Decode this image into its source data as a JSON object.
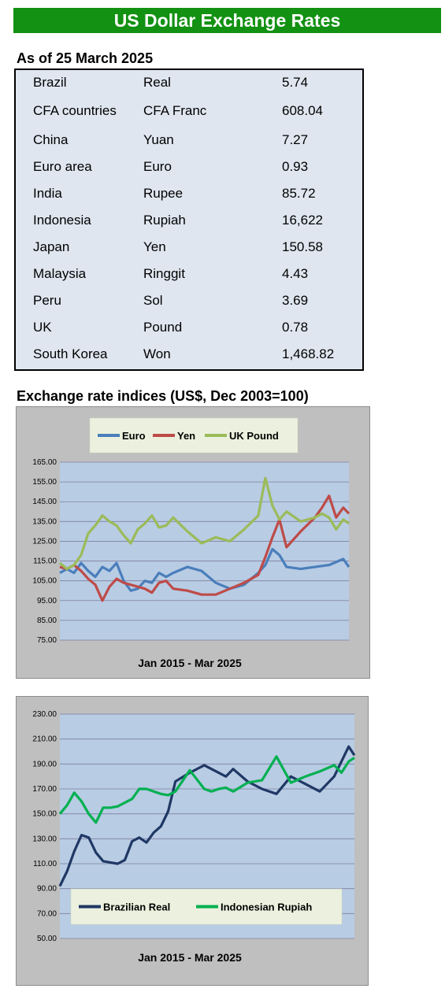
{
  "header": {
    "title": "US Dollar Exchange Rates"
  },
  "rates_section": {
    "subtitle": "As of 25 March 2025",
    "rows": [
      {
        "country": "Brazil",
        "currency": "Real",
        "rate": "5.74"
      },
      {
        "country": "CFA countries",
        "currency": "CFA Franc",
        "rate": "608.04"
      },
      {
        "country": "China",
        "currency": "Yuan",
        "rate": "7.27"
      },
      {
        "country": "Euro area",
        "currency": "Euro",
        "rate": "0.93"
      },
      {
        "country": "India",
        "currency": "Rupee",
        "rate": "85.72"
      },
      {
        "country": "Indonesia",
        "currency": "Rupiah",
        "rate": "16,622"
      },
      {
        "country": "Japan",
        "currency": "Yen",
        "rate": "150.58"
      },
      {
        "country": "Malaysia",
        "currency": "Ringgit",
        "rate": "4.43"
      },
      {
        "country": "Peru",
        "currency": "Sol",
        "rate": "3.69"
      },
      {
        "country": "UK",
        "currency": "Pound",
        "rate": "0.78"
      },
      {
        "country": "South Korea",
        "currency": "Won",
        "rate": "1,468.82"
      }
    ]
  },
  "indices_section": {
    "subtitle": "Exchange rate indices (US$, Dec 2003=100)"
  },
  "chart_data": [
    {
      "type": "line",
      "title": "",
      "xlabel": "Jan 2015 - Mar 2025",
      "ylabel": "",
      "ylim": [
        75,
        165
      ],
      "yticks": [
        "75.00",
        "85.00",
        "95.00",
        "105.00",
        "115.00",
        "125.00",
        "135.00",
        "145.00",
        "155.00",
        "165.00"
      ],
      "grid": true,
      "legend_position": "top",
      "background": "#b8cce4",
      "series": [
        {
          "name": "Euro",
          "color": "#4a7ebb",
          "x": [
            2015,
            2015.25,
            2015.5,
            2015.75,
            2016,
            2016.25,
            2016.5,
            2016.75,
            2017,
            2017.25,
            2017.5,
            2017.75,
            2018,
            2018.25,
            2018.5,
            2018.75,
            2019,
            2019.5,
            2020,
            2020.5,
            2021,
            2021.5,
            2022,
            2022.25,
            2022.5,
            2022.75,
            2023,
            2023.5,
            2024,
            2024.5,
            2025,
            2025.2
          ],
          "values": [
            109,
            111,
            109,
            114,
            110,
            107,
            112,
            110,
            114,
            105,
            100,
            101,
            105,
            104,
            109,
            107,
            109,
            112,
            110,
            104,
            101,
            103,
            109,
            113,
            121,
            118,
            112,
            111,
            112,
            113,
            116,
            112
          ]
        },
        {
          "name": "Yen",
          "color": "#be4b48",
          "x": [
            2015,
            2015.25,
            2015.5,
            2015.75,
            2016,
            2016.25,
            2016.5,
            2016.75,
            2017,
            2017.25,
            2017.5,
            2017.75,
            2018,
            2018.25,
            2018.5,
            2018.75,
            2019,
            2019.5,
            2020,
            2020.5,
            2021,
            2021.5,
            2022,
            2022.25,
            2022.5,
            2022.75,
            2023,
            2023.5,
            2024,
            2024.25,
            2024.5,
            2024.75,
            2025,
            2025.2
          ],
          "values": [
            112,
            111,
            113,
            110,
            106,
            103,
            95,
            102,
            106,
            104,
            103,
            102,
            101,
            99,
            104,
            105,
            101,
            100,
            98,
            98,
            101,
            104,
            108,
            117,
            127,
            136,
            122,
            130,
            137,
            142,
            148,
            137,
            142,
            139
          ]
        },
        {
          "name": "UK Pound",
          "color": "#9bbb59",
          "x": [
            2015,
            2015.25,
            2015.5,
            2015.75,
            2016,
            2016.25,
            2016.5,
            2016.75,
            2017,
            2017.25,
            2017.5,
            2017.75,
            2018,
            2018.25,
            2018.5,
            2018.75,
            2019,
            2019.5,
            2020,
            2020.5,
            2021,
            2021.5,
            2022,
            2022.25,
            2022.5,
            2022.75,
            2023,
            2023.5,
            2024,
            2024.25,
            2024.5,
            2024.75,
            2025,
            2025.2
          ],
          "values": [
            114,
            111,
            113,
            118,
            129,
            133,
            138,
            135,
            133,
            128,
            124,
            131,
            134,
            138,
            132,
            133,
            137,
            130,
            124,
            127,
            125,
            131,
            138,
            157,
            143,
            136,
            140,
            135,
            137,
            139,
            137,
            131,
            136,
            134
          ]
        }
      ]
    },
    {
      "type": "line",
      "title": "",
      "xlabel": "Jan 2015 - Mar 2025",
      "ylabel": "",
      "ylim": [
        50,
        230
      ],
      "yticks": [
        "50.00",
        "70.00",
        "90.00",
        "110.00",
        "130.00",
        "150.00",
        "170.00",
        "190.00",
        "210.00",
        "230.00"
      ],
      "grid": true,
      "legend_position": "bottom",
      "background": "#b8cce4",
      "series": [
        {
          "name": "Brazilian Real",
          "color": "#1f3864",
          "x": [
            2015,
            2015.25,
            2015.5,
            2015.75,
            2016,
            2016.25,
            2016.5,
            2016.75,
            2017,
            2017.25,
            2017.5,
            2017.75,
            2018,
            2018.25,
            2018.5,
            2018.75,
            2019,
            2019.5,
            2020,
            2020.25,
            2020.5,
            2020.75,
            2021,
            2021.5,
            2022,
            2022.5,
            2023,
            2023.5,
            2024,
            2024.5,
            2024.75,
            2025,
            2025.2
          ],
          "values": [
            92,
            104,
            120,
            133,
            131,
            119,
            112,
            111,
            110,
            113,
            128,
            131,
            127,
            135,
            140,
            152,
            176,
            183,
            189,
            186,
            183,
            180,
            186,
            176,
            170,
            166,
            180,
            174,
            168,
            180,
            192,
            204,
            197
          ]
        },
        {
          "name": "Indonesian Rupiah",
          "color": "#00b050",
          "x": [
            2015,
            2015.25,
            2015.5,
            2015.75,
            2016,
            2016.25,
            2016.5,
            2016.75,
            2017,
            2017.25,
            2017.5,
            2017.75,
            2018,
            2018.25,
            2018.5,
            2018.75,
            2019,
            2019.5,
            2020,
            2020.25,
            2020.5,
            2020.75,
            2021,
            2021.5,
            2022,
            2022.5,
            2023,
            2023.5,
            2024,
            2024.5,
            2024.75,
            2025,
            2025.2
          ],
          "values": [
            150,
            157,
            167,
            160,
            150,
            143,
            155,
            155,
            156,
            159,
            162,
            170,
            170,
            168,
            166,
            165,
            168,
            185,
            170,
            168,
            170,
            171,
            168,
            175,
            177,
            196,
            175,
            180,
            184,
            189,
            183,
            192,
            195
          ]
        }
      ]
    }
  ]
}
